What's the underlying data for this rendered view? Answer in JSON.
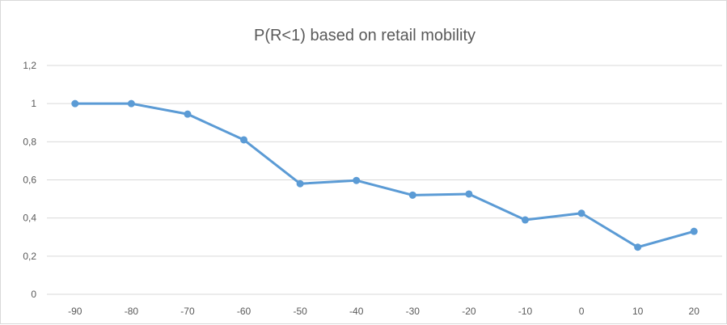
{
  "chart_data": {
    "type": "line",
    "title": "P(R<1) based on retail mobility",
    "xlabel": "",
    "ylabel": "",
    "x": [
      -90,
      -80,
      -70,
      -60,
      -50,
      -40,
      -30,
      -20,
      -10,
      0,
      10,
      20
    ],
    "x_tick_labels": [
      "-90",
      "-80",
      "-70",
      "-60",
      "-50",
      "-40",
      "-30",
      "-20",
      "-10",
      "0",
      "10",
      "20"
    ],
    "series": [
      {
        "values": [
          1.0,
          1.0,
          0.945,
          0.81,
          0.58,
          0.597,
          0.52,
          0.526,
          0.39,
          0.425,
          0.247,
          0.33
        ]
      }
    ],
    "ylim": [
      0,
      1.2
    ],
    "y_ticks": [
      0,
      0.2,
      0.4,
      0.6,
      0.8,
      1.0,
      1.2
    ],
    "y_tick_labels": [
      "0",
      "0,2",
      "0,4",
      "0,6",
      "0,8",
      "1",
      "1,2"
    ],
    "grid": "horizontal",
    "legend": "none",
    "colors": {
      "line": "#5b9bd5",
      "grid": "#d9d9d9",
      "text": "#595959"
    }
  }
}
